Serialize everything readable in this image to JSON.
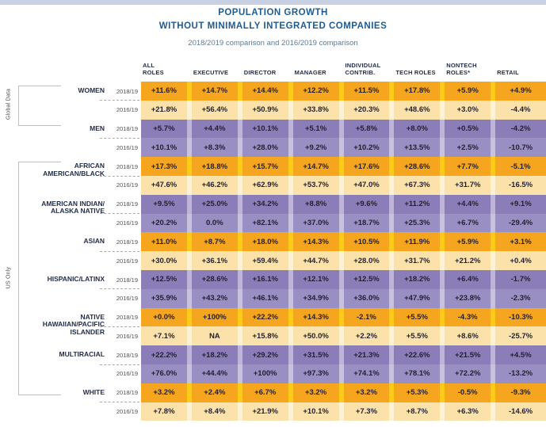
{
  "page": {
    "top_bar_color": "#c7d1e3",
    "background": "#ffffff"
  },
  "header": {
    "title_line1": "POPULATION GROWTH",
    "title_line2": "WITHOUT MINIMALLY INTEGRATED COMPANIES",
    "subtitle": "2018/2019 comparison and 2016/2019 comparison",
    "title_color": "#1d5c92",
    "subtitle_color": "#5d7b93"
  },
  "side": {
    "global_label": "Global Data",
    "us_label": "US Only"
  },
  "colors": {
    "orange_dark": "#f5a61e",
    "orange_dark_separator": "#fccb17",
    "orange_light": "#fbe2ab",
    "orange_light_separator": "#fdf2d8",
    "purple_dark": "#8b7eb8",
    "purple_dark_separator": "#beb4d7",
    "purple_light": "#9a8fc2",
    "purple_light_separator": "#c9c2df",
    "cell_text": "#221f33",
    "header_text": "#1f2b47"
  },
  "chart_data": {
    "type": "table",
    "title": "POPULATION GROWTH WITHOUT MINIMALLY INTEGRATED COMPANIES",
    "subtitle": "2018/2019 comparison and 2016/2019 comparison",
    "columns": [
      "ALL\nROLES",
      "EXECUTIVE",
      "DIRECTOR",
      "MANAGER",
      "INDIVIDUAL\nCONTRIB.",
      "TECH ROLES",
      "NONTECH\nROLES*",
      "RETAIL"
    ],
    "row_groups": [
      {
        "group": "WOMEN",
        "label_lines": [
          "WOMEN"
        ],
        "scope": "Global Data",
        "color_scheme": "orange",
        "rows": [
          {
            "period": "2018/19",
            "values": [
              "+11.6%",
              "+14.7%",
              "+14.4%",
              "+12.2%",
              "+11.5%",
              "+17.8%",
              "+5.9%",
              "+4.9%"
            ]
          },
          {
            "period": "2016/19",
            "values": [
              "+21.8%",
              "+56.4%",
              "+50.9%",
              "+33.8%",
              "+20.3%",
              "+48.6%",
              "+3.0%",
              "-4.4%"
            ]
          }
        ]
      },
      {
        "group": "MEN",
        "label_lines": [
          "MEN"
        ],
        "scope": "Global Data",
        "color_scheme": "purple",
        "rows": [
          {
            "period": "2018/19",
            "values": [
              "+5.7%",
              "+4.4%",
              "+10.1%",
              "+5.1%",
              "+5.8%",
              "+8.0%",
              "+0.5%",
              "-4.2%"
            ]
          },
          {
            "period": "2016/19",
            "values": [
              "+10.1%",
              "+8.3%",
              "+28.0%",
              "+9.2%",
              "+10.2%",
              "+13.5%",
              "+2.5%",
              "-10.7%"
            ]
          }
        ]
      },
      {
        "group": "AFRICAN AMERICAN/BLACK",
        "label_lines": [
          "AFRICAN",
          "AMERICAN/BLACK"
        ],
        "scope": "US Only",
        "color_scheme": "orange",
        "rows": [
          {
            "period": "2018/19",
            "values": [
              "+17.3%",
              "+18.8%",
              "+15.7%",
              "+14.7%",
              "+17.6%",
              "+28.6%",
              "+7.7%",
              "-5.1%"
            ]
          },
          {
            "period": "2016/19",
            "values": [
              "+47.6%",
              "+46.2%",
              "+62.9%",
              "+53.7%",
              "+47.0%",
              "+67.3%",
              "+31.7%",
              "-16.5%"
            ]
          }
        ]
      },
      {
        "group": "AMERICAN INDIAN/ALASKA NATIVE",
        "label_lines": [
          "AMERICAN INDIAN/",
          "ALASKA NATIVE"
        ],
        "scope": "US Only",
        "color_scheme": "purple",
        "rows": [
          {
            "period": "2018/19",
            "values": [
              "+9.5%",
              "+25.0%",
              "+34.2%",
              "+8.8%",
              "+9.6%",
              "+11.2%",
              "+4.4%",
              "+9.1%"
            ]
          },
          {
            "period": "2016/19",
            "values": [
              "+20.2%",
              "0.0%",
              "+82.1%",
              "+37.0%",
              "+18.7%",
              "+25.3%",
              "+6.7%",
              "-29.4%"
            ]
          }
        ]
      },
      {
        "group": "ASIAN",
        "label_lines": [
          "ASIAN"
        ],
        "scope": "US Only",
        "color_scheme": "orange",
        "rows": [
          {
            "period": "2018/19",
            "values": [
              "+11.0%",
              "+8.7%",
              "+18.0%",
              "+14.3%",
              "+10.5%",
              "+11.9%",
              "+5.9%",
              "+3.1%"
            ]
          },
          {
            "period": "2016/19",
            "values": [
              "+30.0%",
              "+36.1%",
              "+59.4%",
              "+44.7%",
              "+28.0%",
              "+31.7%",
              "+21.2%",
              "+0.4%"
            ]
          }
        ]
      },
      {
        "group": "HISPANIC/LATINX",
        "label_lines": [
          "HISPANIC/LATINX"
        ],
        "scope": "US Only",
        "color_scheme": "purple",
        "rows": [
          {
            "period": "2018/19",
            "values": [
              "+12.5%",
              "+28.6%",
              "+16.1%",
              "+12.1%",
              "+12.5%",
              "+18.2%",
              "+6.4%",
              "-1.7%"
            ]
          },
          {
            "period": "2016/19",
            "values": [
              "+35.9%",
              "+43.2%",
              "+46.1%",
              "+34.9%",
              "+36.0%",
              "+47.9%",
              "+23.8%",
              "-2.3%"
            ]
          }
        ]
      },
      {
        "group": "NATIVE HAWAIIAN/PACIFIC ISLANDER",
        "label_lines": [
          "NATIVE",
          "HAWAIIAN/PACIFIC",
          "ISLANDER"
        ],
        "scope": "US Only",
        "color_scheme": "orange",
        "rows": [
          {
            "period": "2018/19",
            "values": [
              "+0.0%",
              "+100%",
              "+22.2%",
              "+14.3%",
              "-2.1%",
              "+5.5%",
              "-4.3%",
              "-10.3%"
            ]
          },
          {
            "period": "2016/19",
            "values": [
              "+7.1%",
              "NA",
              "+15.8%",
              "+50.0%",
              "+2.2%",
              "+5.5%",
              "+8.6%",
              "-25.7%"
            ]
          }
        ]
      },
      {
        "group": "MULTIRACIAL",
        "label_lines": [
          "MULTIRACIAL"
        ],
        "scope": "US Only",
        "color_scheme": "purple",
        "rows": [
          {
            "period": "2018/19",
            "values": [
              "+22.2%",
              "+18.2%",
              "+29.2%",
              "+31.5%",
              "+21.3%",
              "+22.6%",
              "+21.5%",
              "+4.5%"
            ]
          },
          {
            "period": "2016/19",
            "values": [
              "+76.0%",
              "+44.4%",
              "+100%",
              "+97.3%",
              "+74.1%",
              "+78.1%",
              "+72.2%",
              "-13.2%"
            ]
          }
        ]
      },
      {
        "group": "WHITE",
        "label_lines": [
          "WHITE"
        ],
        "scope": "US Only",
        "color_scheme": "orange",
        "rows": [
          {
            "period": "2018/19",
            "values": [
              "+3.2%",
              "+2.4%",
              "+6.7%",
              "+3.2%",
              "+3.2%",
              "+5.3%",
              "-0.5%",
              "-9.3%"
            ]
          },
          {
            "period": "2016/19",
            "values": [
              "+7.8%",
              "+8.4%",
              "+21.9%",
              "+10.1%",
              "+7.3%",
              "+8.7%",
              "+6.3%",
              "-14.6%"
            ]
          }
        ]
      }
    ]
  }
}
